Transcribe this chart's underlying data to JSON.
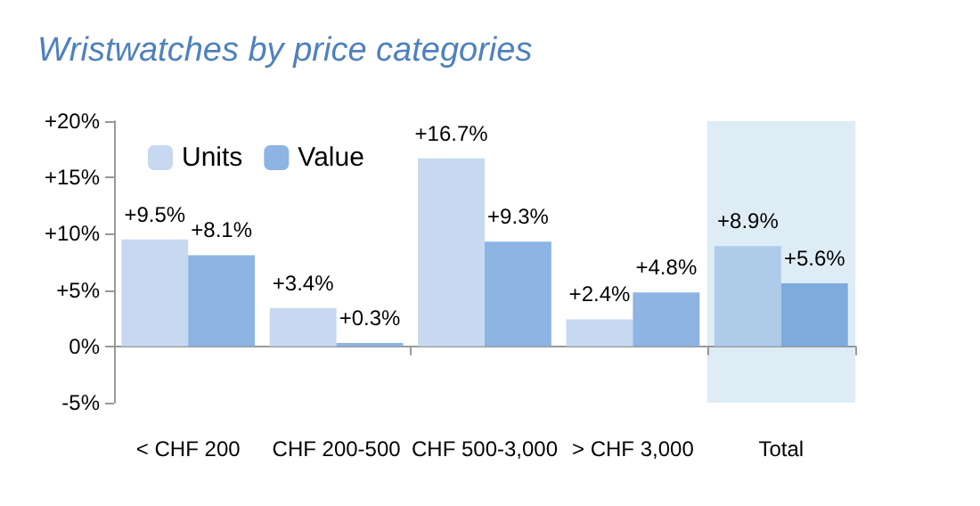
{
  "chart_data": {
    "type": "bar",
    "title": "Wristwatches by price categories",
    "categories": [
      "< CHF 200",
      "CHF 200-500",
      "CHF 500-3,000",
      "> CHF 3,000",
      "Total"
    ],
    "series": [
      {
        "name": "Units",
        "color": "#c6d9f1",
        "colors": [
          "#c6d9f1",
          "#c6d9f1",
          "#c6d9f1",
          "#c6d9f1",
          "#aecbea"
        ],
        "values": [
          9.5,
          3.4,
          16.7,
          2.4,
          8.9
        ],
        "value_labels": [
          "+9.5%",
          "+3.4%",
          "+16.7%",
          "+2.4%",
          "+8.9%"
        ]
      },
      {
        "name": "Value",
        "color": "#8db4e2",
        "colors": [
          "#8db4e2",
          "#8db4e2",
          "#8db4e2",
          "#8db4e2",
          "#7eabdc"
        ],
        "values": [
          8.1,
          0.3,
          9.3,
          4.8,
          5.6
        ],
        "value_labels": [
          "+8.1%",
          "+0.3%",
          "+9.3%",
          "+4.8%",
          "+5.6%"
        ]
      }
    ],
    "ylim": [
      -5,
      20
    ],
    "yticks": [
      {
        "value": -5,
        "label": "-5%"
      },
      {
        "value": 0,
        "label": "0%"
      },
      {
        "value": 5,
        "label": "+5%"
      },
      {
        "value": 10,
        "label": "+10%"
      },
      {
        "value": 15,
        "label": "+15%"
      },
      {
        "value": 20,
        "label": "+20%"
      }
    ],
    "bands": [
      {
        "axis": "x",
        "from": "Total",
        "to": "Total",
        "color": "#deecf5"
      }
    ],
    "legend": "top left"
  }
}
